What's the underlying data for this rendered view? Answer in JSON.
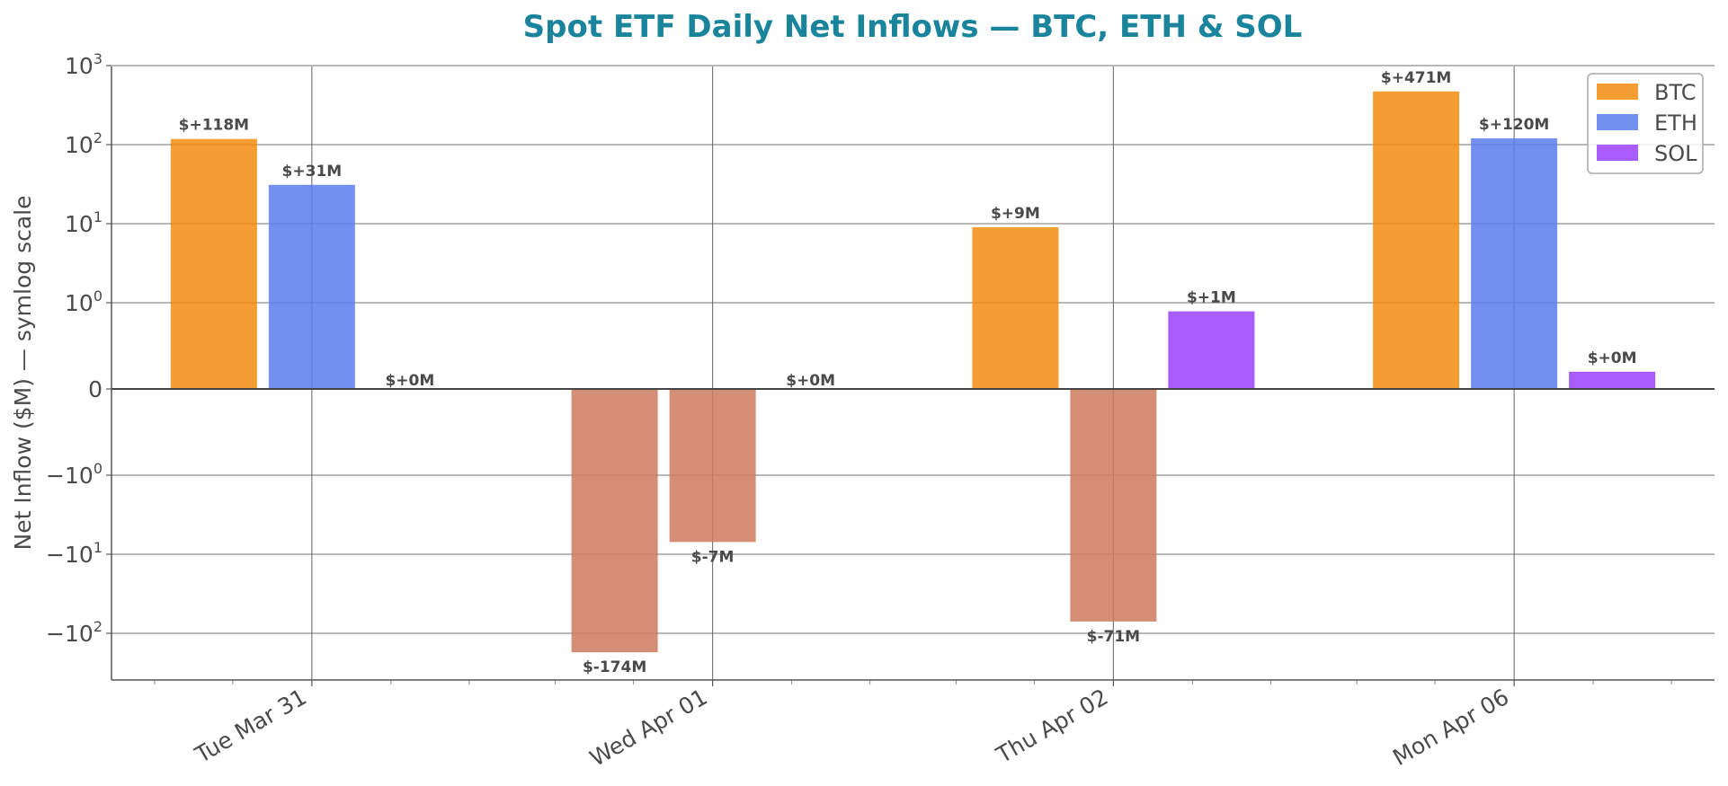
{
  "chart_data": {
    "type": "bar",
    "title": "Spot ETF Daily Net Inflows — BTC, ETH & SOL",
    "xlabel": "",
    "ylabel": "Net Inflow ($M) — symlog scale",
    "y_scale": "symlog",
    "y_scale_linthresh": 1,
    "ylim": [
      -300,
      1000
    ],
    "grid": true,
    "legend_placement": "top-right",
    "categories": [
      "Tue Mar 31",
      "Wed Apr 01",
      "Thu Apr 02",
      "Mon Apr 06"
    ],
    "y_ticks": [
      {
        "value": 1000,
        "base": "10",
        "exp": "3",
        "sign": ""
      },
      {
        "value": 100,
        "base": "10",
        "exp": "2",
        "sign": ""
      },
      {
        "value": 10,
        "base": "10",
        "exp": "1",
        "sign": ""
      },
      {
        "value": 1,
        "base": "10",
        "exp": "0",
        "sign": ""
      },
      {
        "value": 0,
        "base": "0",
        "exp": "",
        "sign": ""
      },
      {
        "value": -1,
        "base": "10",
        "exp": "0",
        "sign": "−"
      },
      {
        "value": -10,
        "base": "10",
        "exp": "1",
        "sign": "−"
      },
      {
        "value": -100,
        "base": "10",
        "exp": "2",
        "sign": "−"
      }
    ],
    "negative_color": "#cc7a5e",
    "series": [
      {
        "name": "BTC",
        "color": "#f28c0f",
        "values": [
          118,
          -174,
          9,
          471
        ],
        "labels": [
          "$+118M",
          "$-174M",
          "$+9M",
          "$+471M"
        ]
      },
      {
        "name": "ETH",
        "color": "#5b7bec",
        "values": [
          31,
          -7,
          -71,
          120
        ],
        "labels": [
          "$+31M",
          "$-7M",
          "$-71M",
          "$+120M"
        ]
      },
      {
        "name": "SOL",
        "color": "#9a40fb",
        "values": [
          0,
          0,
          0.9,
          0.2
        ],
        "labels": [
          "$+0M",
          "$+0M",
          "$+1M",
          "$+0M"
        ]
      }
    ]
  },
  "colors": {
    "title": "#1a849c",
    "axis_text": "#4a4a4a",
    "grid": "#707070",
    "axis_line": "#555555"
  }
}
